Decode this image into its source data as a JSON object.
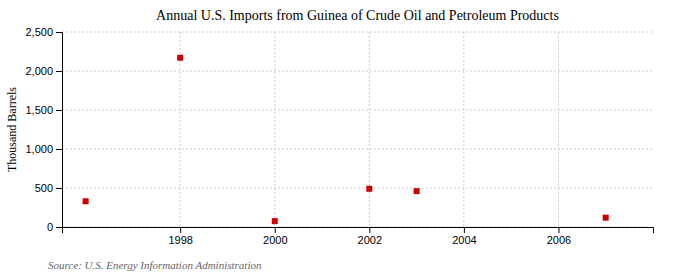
{
  "chart_data": {
    "type": "scatter",
    "title": "Annual U.S. Imports from Guinea of Crude Oil and Petroleum Products",
    "ylabel": "Thousand Barrels",
    "source": "Source: U.S. Energy Information Administration",
    "x": [
      1996,
      1998,
      2000,
      2002,
      2003,
      2007
    ],
    "values": [
      330,
      2170,
      75,
      490,
      460,
      120
    ],
    "color": "#cc0000",
    "marker": "square",
    "xlim": [
      1995.5,
      2008
    ],
    "ylim": [
      0,
      2500
    ],
    "xticks": [
      1998,
      2000,
      2002,
      2004,
      2006
    ],
    "yticks": [
      0,
      500,
      {
        "value": 1000,
        "label": "1,000"
      },
      {
        "value": 1500,
        "label": "1,500"
      },
      {
        "value": 2000,
        "label": "2,000"
      },
      {
        "value": 2500,
        "label": "2,500"
      }
    ],
    "grid": true
  }
}
